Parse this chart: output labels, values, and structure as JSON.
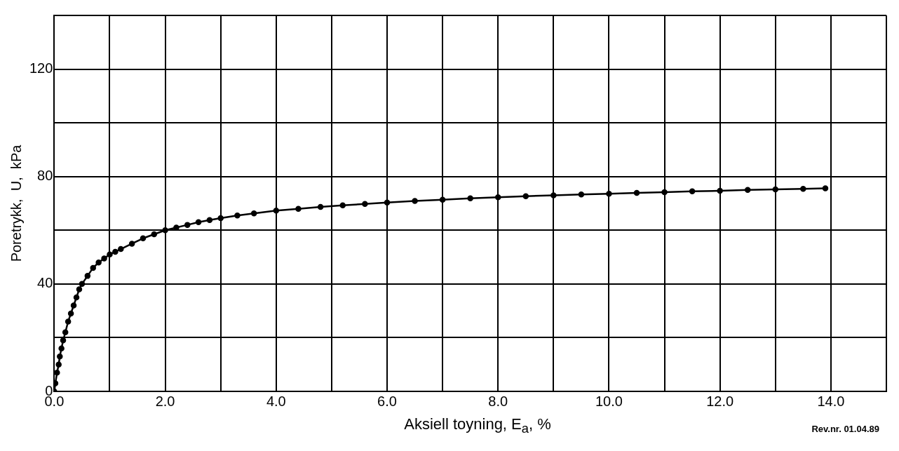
{
  "chart_data": {
    "type": "line",
    "xlabel": "Aksiell toyning,  E$_{a}$, %",
    "ylabel": "Poretrykk,  U,  kPa",
    "annotations": [
      "Rev.nr.  01.04.89"
    ],
    "x": [
      0,
      0.02,
      0.05,
      0.08,
      0.1,
      0.13,
      0.16,
      0.2,
      0.25,
      0.3,
      0.35,
      0.4,
      0.45,
      0.5,
      0.6,
      0.7,
      0.8,
      0.9,
      1.0,
      1.1,
      1.2,
      1.4,
      1.6,
      1.8,
      2.0,
      2.2,
      2.4,
      2.6,
      2.8,
      3.0,
      3.3,
      3.6,
      4.0,
      4.4,
      4.8,
      5.2,
      5.6,
      6.0,
      6.5,
      7.0,
      7.5,
      8.0,
      8.5,
      9.0,
      9.5,
      10.0,
      10.5,
      11.0,
      11.5,
      12.0,
      12.5,
      13.0,
      13.5,
      13.9
    ],
    "series": [
      {
        "color": "#000000",
        "values": [
          0,
          3,
          7,
          10,
          13,
          16,
          19,
          22,
          26,
          29,
          32,
          35,
          38,
          40,
          43,
          46,
          48,
          49.5,
          51,
          52,
          53,
          55,
          57,
          58.5,
          60,
          61,
          62,
          63,
          63.8,
          64.5,
          65.5,
          66.3,
          67.3,
          68,
          68.7,
          69.3,
          69.8,
          70.3,
          70.9,
          71.4,
          71.9,
          72.3,
          72.7,
          73,
          73.3,
          73.6,
          73.9,
          74.2,
          74.5,
          74.7,
          75,
          75.2,
          75.4,
          75.6
        ]
      }
    ],
    "xlim": [
      0,
      15
    ],
    "ylim": [
      0,
      140
    ],
    "xticks": [
      {
        "value": 0,
        "label": "0.0"
      },
      {
        "value": 1,
        "label": null
      },
      {
        "value": 2,
        "label": "2.0"
      },
      {
        "value": 3,
        "label": null
      },
      {
        "value": 4,
        "label": "4.0"
      },
      {
        "value": 5,
        "label": null
      },
      {
        "value": 6,
        "label": "6.0"
      },
      {
        "value": 7,
        "label": null
      },
      {
        "value": 8,
        "label": "8.0"
      },
      {
        "value": 9,
        "label": null
      },
      {
        "value": 10,
        "label": "10.0"
      },
      {
        "value": 11,
        "label": null
      },
      {
        "value": 12,
        "label": "12.0"
      },
      {
        "value": 13,
        "label": null
      },
      {
        "value": 14,
        "label": "14.0"
      },
      {
        "value": 15,
        "label": null
      }
    ],
    "yticks": [
      0,
      {
        "value": 20,
        "label": null
      },
      40,
      {
        "value": 60,
        "label": null
      },
      80,
      {
        "value": 100,
        "label": null
      },
      120,
      {
        "value": 140,
        "label": null
      }
    ],
    "grid": true,
    "legend": false,
    "marker": "circle",
    "line_style": "solid"
  }
}
